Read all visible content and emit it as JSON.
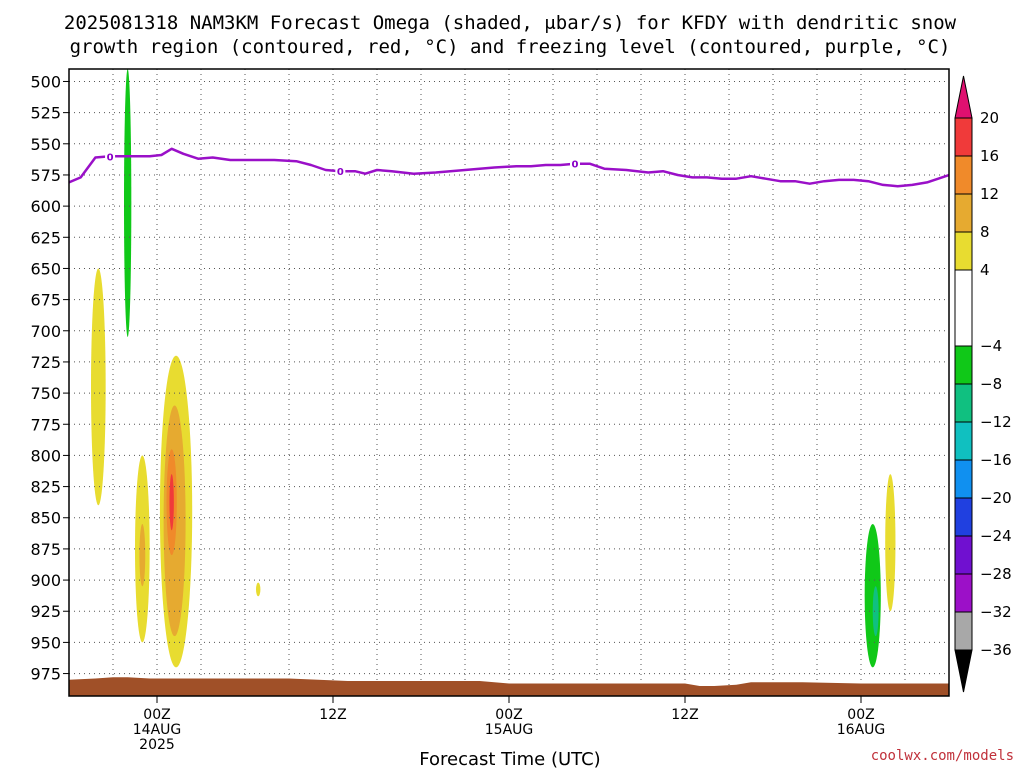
{
  "chart_data": {
    "type": "heatmap",
    "title_line1": "2025081318 NAM3KM Forecast Omega (shaded, μbar/s) for KFDY with dendritic snow",
    "title_line2": "growth region (contoured, red, °C) and freezing level (contoured, purple, °C)",
    "xlabel": "Forecast Time (UTC)",
    "credit": "coolwx.com/models",
    "x_range_hours": [
      -6,
      54
    ],
    "y_levels": [
      500,
      525,
      550,
      575,
      600,
      625,
      650,
      675,
      700,
      725,
      750,
      775,
      800,
      825,
      850,
      875,
      900,
      925,
      950,
      975
    ],
    "y_range_hpa": [
      490,
      993
    ],
    "x_ticks": [
      {
        "hour": 0,
        "lines": [
          "00Z",
          "14AUG",
          "2025"
        ]
      },
      {
        "hour": 12,
        "lines": [
          "12Z"
        ]
      },
      {
        "hour": 24,
        "lines": [
          "00Z",
          "15AUG"
        ]
      },
      {
        "hour": 36,
        "lines": [
          "12Z"
        ]
      },
      {
        "hour": 48,
        "lines": [
          "00Z",
          "16AUG"
        ]
      }
    ],
    "colorbar": {
      "ticks": [
        20,
        16,
        12,
        8,
        4,
        -4,
        -8,
        -12,
        -16,
        -20,
        -24,
        -28,
        -32,
        -36
      ],
      "bins": [
        {
          "from": 16,
          "to": 20,
          "color": "#f03a3a"
        },
        {
          "from": 12,
          "to": 16,
          "color": "#f08a2a"
        },
        {
          "from": 8,
          "to": 12,
          "color": "#e6aa30"
        },
        {
          "from": 4,
          "to": 8,
          "color": "#e8dc30"
        },
        {
          "from": -4,
          "to": 4,
          "color": "#ffffff"
        },
        {
          "from": -8,
          "to": -4,
          "color": "#10c818"
        },
        {
          "from": -12,
          "to": -8,
          "color": "#10c080"
        },
        {
          "from": -16,
          "to": -12,
          "color": "#10c0c0"
        },
        {
          "from": -20,
          "to": -16,
          "color": "#1090f0"
        },
        {
          "from": -24,
          "to": -20,
          "color": "#2040e0"
        },
        {
          "from": -28,
          "to": -24,
          "color": "#7010d0"
        },
        {
          "from": -32,
          "to": -28,
          "color": "#9c10c8"
        },
        {
          "from": -36,
          "to": -32,
          "color": "#a8a8a8"
        }
      ],
      "top_color": "#e01070",
      "bottom_color": "#000000"
    },
    "freezing_level": {
      "label": "0",
      "color": "#9a10c8",
      "label_hours": [
        -3.2,
        12.5,
        28.5
      ],
      "points": [
        [
          -6,
          581
        ],
        [
          -5.2,
          577
        ],
        [
          -4.2,
          561
        ],
        [
          -3.2,
          560
        ],
        [
          -2,
          560
        ],
        [
          -0.5,
          560
        ],
        [
          0.3,
          559
        ],
        [
          1,
          554
        ],
        [
          1.8,
          558
        ],
        [
          2.8,
          562
        ],
        [
          3.8,
          561
        ],
        [
          5,
          563
        ],
        [
          6.5,
          563
        ],
        [
          8,
          563
        ],
        [
          9.5,
          564
        ],
        [
          10.5,
          567
        ],
        [
          11.5,
          571
        ],
        [
          12.5,
          572
        ],
        [
          13.5,
          572
        ],
        [
          14.2,
          574
        ],
        [
          15,
          571
        ],
        [
          16,
          572
        ],
        [
          17.5,
          574
        ],
        [
          19,
          573
        ],
        [
          21,
          571
        ],
        [
          23,
          569
        ],
        [
          24.5,
          568
        ],
        [
          25.5,
          568
        ],
        [
          26.5,
          567
        ],
        [
          27.5,
          567
        ],
        [
          28.5,
          566
        ],
        [
          29.5,
          566
        ],
        [
          30.5,
          570
        ],
        [
          32,
          571
        ],
        [
          33.5,
          573
        ],
        [
          34.5,
          572
        ],
        [
          35.5,
          575
        ],
        [
          36.5,
          577
        ],
        [
          37.5,
          577
        ],
        [
          38.5,
          578
        ],
        [
          39.5,
          578
        ],
        [
          40.5,
          576
        ],
        [
          41.5,
          578
        ],
        [
          42.5,
          580
        ],
        [
          43.5,
          580
        ],
        [
          44.5,
          582
        ],
        [
          45.5,
          580
        ],
        [
          46.5,
          579
        ],
        [
          47.5,
          579
        ],
        [
          48.5,
          580
        ],
        [
          49.5,
          583
        ],
        [
          50.5,
          584
        ],
        [
          51.5,
          583
        ],
        [
          52.5,
          581
        ],
        [
          54,
          575
        ]
      ]
    },
    "omega_features": [
      {
        "kind": "negative",
        "color": "#10c818",
        "center_hour": -2.0,
        "half_width_hours": 0.25,
        "top_hpa": 490,
        "bottom_hpa": 705
      },
      {
        "kind": "positive",
        "color": "#e8dc30",
        "center_hour": -4.0,
        "half_width_hours": 0.5,
        "top_hpa": 650,
        "bottom_hpa": 840
      },
      {
        "kind": "positive",
        "color": "#e8dc30",
        "center_hour": -1.0,
        "half_width_hours": 0.5,
        "top_hpa": 800,
        "bottom_hpa": 950
      },
      {
        "kind": "positive",
        "color": "#e6aa30",
        "center_hour": -1.0,
        "half_width_hours": 0.2,
        "top_hpa": 855,
        "bottom_hpa": 905
      },
      {
        "kind": "positive",
        "color": "#e8dc30",
        "center_hour": 1.3,
        "half_width_hours": 1.1,
        "top_hpa": 720,
        "bottom_hpa": 970
      },
      {
        "kind": "positive",
        "color": "#e6aa30",
        "center_hour": 1.2,
        "half_width_hours": 0.75,
        "top_hpa": 760,
        "bottom_hpa": 945
      },
      {
        "kind": "positive",
        "color": "#f08a2a",
        "center_hour": 1.0,
        "half_width_hours": 0.35,
        "top_hpa": 795,
        "bottom_hpa": 880
      },
      {
        "kind": "positive",
        "color": "#f03a3a",
        "center_hour": 1.0,
        "half_width_hours": 0.15,
        "top_hpa": 815,
        "bottom_hpa": 860
      },
      {
        "kind": "positive",
        "color": "#e8dc30",
        "center_hour": 6.9,
        "half_width_hours": 0.15,
        "top_hpa": 902,
        "bottom_hpa": 913
      },
      {
        "kind": "negative",
        "color": "#10c818",
        "center_hour": 48.8,
        "half_width_hours": 0.55,
        "top_hpa": 855,
        "bottom_hpa": 970
      },
      {
        "kind": "negative",
        "color": "#10c080",
        "center_hour": 49.0,
        "half_width_hours": 0.2,
        "top_hpa": 905,
        "bottom_hpa": 945
      },
      {
        "kind": "positive",
        "color": "#e8dc30",
        "center_hour": 50.0,
        "half_width_hours": 0.35,
        "top_hpa": 815,
        "bottom_hpa": 925
      }
    ],
    "terrain": {
      "color": "#a05028",
      "points": [
        [
          -6,
          980
        ],
        [
          -4.2,
          979
        ],
        [
          -3,
          978
        ],
        [
          -2,
          978
        ],
        [
          -0.5,
          979
        ],
        [
          1,
          979
        ],
        [
          3,
          979
        ],
        [
          6,
          979
        ],
        [
          9,
          979
        ],
        [
          11,
          980
        ],
        [
          13,
          981
        ],
        [
          16,
          981
        ],
        [
          19,
          981
        ],
        [
          22,
          981
        ],
        [
          24,
          983
        ],
        [
          27,
          983
        ],
        [
          30,
          983
        ],
        [
          33,
          983
        ],
        [
          36,
          983
        ],
        [
          37,
          985
        ],
        [
          38,
          985
        ],
        [
          39.5,
          984
        ],
        [
          40.5,
          982
        ],
        [
          44,
          982
        ],
        [
          48,
          983
        ],
        [
          51,
          983
        ],
        [
          54,
          983
        ]
      ]
    }
  }
}
